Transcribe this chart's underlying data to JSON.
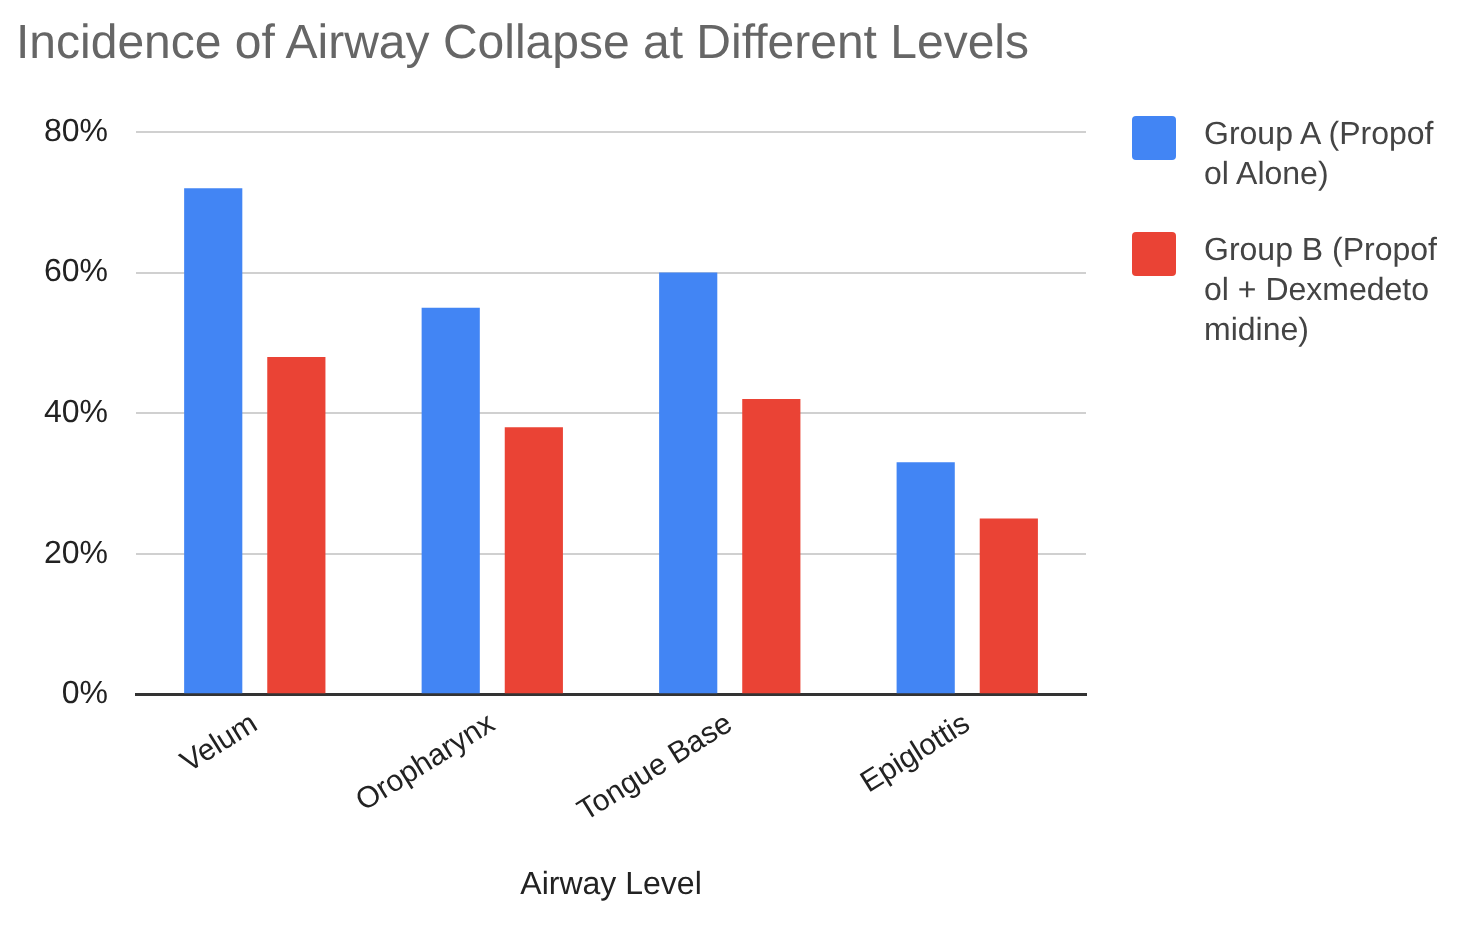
{
  "chart_data": {
    "type": "bar",
    "title": "Incidence of Airway Collapse at Different Levels",
    "xlabel": "Airway Level",
    "categories": [
      "Velum",
      "Oropharynx",
      "Tongue Base",
      "Epiglottis"
    ],
    "series": [
      {
        "name": "Group A (Propofol Alone)",
        "color": "#4285f4",
        "values": [
          72,
          55,
          60,
          33
        ]
      },
      {
        "name": "Group B (Propofol + Dexmedetomidine)",
        "color": "#ea4335",
        "values": [
          48,
          38,
          42,
          25
        ]
      }
    ],
    "ylim": [
      0,
      80
    ],
    "yticks": [
      {
        "value": 0,
        "label": "0%"
      },
      {
        "value": 20,
        "label": "20%"
      },
      {
        "value": 40,
        "label": "40%"
      },
      {
        "value": 60,
        "label": "60%"
      },
      {
        "value": 80,
        "label": "80%"
      }
    ],
    "grid": "y",
    "legend": "right"
  }
}
